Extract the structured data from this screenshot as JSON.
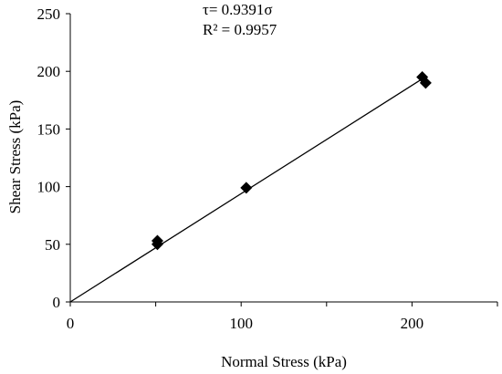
{
  "chart_data": {
    "type": "scatter",
    "title": "",
    "xlabel": "Normal Stress (kPa)",
    "ylabel": "Shear Stress (kPa)",
    "xlim": [
      0,
      250
    ],
    "ylim": [
      0,
      250
    ],
    "xticks": [
      0,
      100,
      200
    ],
    "yticks": [
      0,
      50,
      100,
      150,
      200,
      250
    ],
    "grid": false,
    "legend": "none",
    "annotations": [
      "τ= 0.9391σ",
      "R² = 0.9957"
    ],
    "series": [
      {
        "x": [
          51,
          51,
          103,
          206,
          208
        ],
        "y": [
          53,
          50,
          99,
          195,
          190
        ],
        "marker": "diamond",
        "color": "#000000"
      }
    ],
    "trendline": {
      "slope": 0.9391,
      "intercept": 0,
      "x_range": [
        0,
        208
      ],
      "color": "#000000"
    }
  }
}
